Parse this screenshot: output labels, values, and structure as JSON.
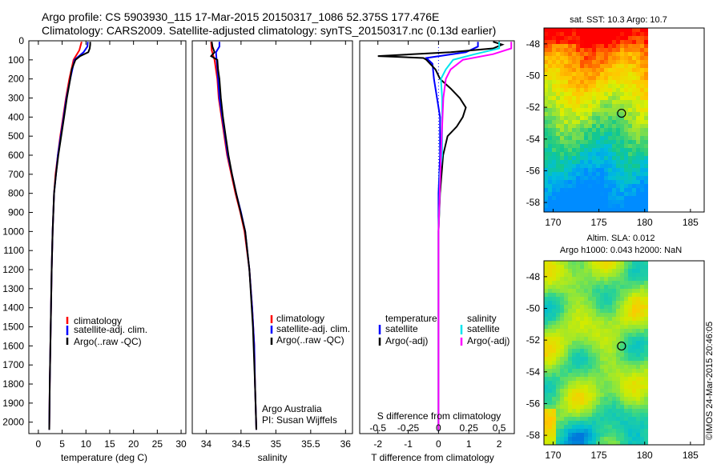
{
  "header": {
    "line1": "Argo profile: CS 5903930_115 17-Mar-2015 20150317_1086 52.375S 177.476E",
    "line2": "Climatology: CARS2009. Satellite-adjusted climatology: synTS_20150317.nc (0.13d earlier)"
  },
  "colors": {
    "climatology": "#ff0000",
    "satellite": "#0000ff",
    "argo": "#000000",
    "satellite_salinity": "#00e5ee",
    "argo_salinity_adj": "#ff00ff"
  },
  "credits": {
    "institution": "Argo Australia",
    "pi": "PI: Susan Wijffels",
    "stamp": "©IMOS 24-Mar-2015 20:46:05"
  },
  "chart_data": [
    {
      "type": "line",
      "name": "temperature-profile",
      "xlabel": "temperature (deg C)",
      "xlim": [
        -2,
        31
      ],
      "xticks": [
        0,
        5,
        10,
        15,
        20,
        25,
        30
      ],
      "ylim": [
        2060,
        0
      ],
      "yticks": [
        0,
        100,
        200,
        300,
        400,
        500,
        600,
        700,
        800,
        900,
        1000,
        1100,
        1200,
        1300,
        1400,
        1500,
        1600,
        1700,
        1800,
        1900,
        2000
      ],
      "legend": [
        "climatology",
        "satellite-adj. clim.",
        "Argo(..raw -QC)"
      ],
      "series": [
        {
          "name": "climatology",
          "color": "#ff0000",
          "depth": [
            5,
            50,
            100,
            200,
            300,
            400,
            500,
            600,
            700,
            800,
            1000,
            1200,
            1500,
            1800,
            2040
          ],
          "values": [
            9.1,
            8.6,
            7.4,
            6.5,
            5.8,
            5.2,
            4.6,
            4.1,
            3.6,
            3.3,
            3.0,
            2.8,
            2.6,
            2.4,
            2.3
          ]
        },
        {
          "name": "satellite-adj. clim.",
          "color": "#0000ff",
          "depth": [
            5,
            30,
            60,
            100,
            200,
            300,
            400,
            500,
            600,
            700,
            800,
            1000,
            1200,
            1500,
            1800,
            2040
          ],
          "values": [
            10.4,
            10.3,
            9.5,
            7.6,
            6.7,
            5.9,
            5.3,
            4.7,
            4.1,
            3.7,
            3.3,
            3.0,
            2.8,
            2.6,
            2.4,
            2.3
          ]
        },
        {
          "name": "Argo(..raw -QC)",
          "color": "#000000",
          "depth": [
            5,
            20,
            40,
            60,
            80,
            100,
            150,
            200,
            300,
            400,
            500,
            600,
            700,
            800,
            1000,
            1200,
            1500,
            1800,
            2040
          ],
          "values": [
            10.9,
            10.9,
            10.8,
            10.5,
            8.8,
            7.8,
            7.0,
            6.7,
            6.0,
            5.4,
            4.8,
            4.2,
            3.7,
            3.3,
            3.0,
            2.8,
            2.6,
            2.4,
            2.3
          ]
        }
      ]
    },
    {
      "type": "line",
      "name": "salinity-profile",
      "xlabel": "salinity",
      "xlim": [
        33.8,
        36.1
      ],
      "xticks": [
        34,
        34.5,
        35,
        35.5,
        36
      ],
      "ylim": [
        2060,
        0
      ],
      "legend": [
        "climatology",
        "satellite-adj. clim.",
        "Argo(..raw -QC)"
      ],
      "series": [
        {
          "name": "climatology",
          "color": "#ff0000",
          "depth": [
            5,
            50,
            100,
            200,
            300,
            400,
            500,
            600,
            700,
            800,
            900,
            1000,
            1200,
            1400,
            1600,
            1800,
            2040
          ],
          "values": [
            34.07,
            34.08,
            34.12,
            34.16,
            34.18,
            34.22,
            34.26,
            34.3,
            34.36,
            34.42,
            34.49,
            34.55,
            34.62,
            34.66,
            34.69,
            34.7,
            34.72
          ]
        },
        {
          "name": "satellite-adj. clim.",
          "color": "#0000ff",
          "depth": [
            5,
            30,
            60,
            100,
            200,
            300,
            400,
            500,
            600,
            700,
            800,
            900,
            1000,
            1200,
            1400,
            1600,
            1800,
            2040
          ],
          "values": [
            34.19,
            34.19,
            34.14,
            34.15,
            34.17,
            34.19,
            34.23,
            34.27,
            34.31,
            34.37,
            34.43,
            34.5,
            34.56,
            34.62,
            34.66,
            34.69,
            34.7,
            34.72
          ]
        },
        {
          "name": "Argo(..raw -QC)",
          "color": "#000000",
          "depth": [
            5,
            30,
            60,
            80,
            100,
            150,
            200,
            300,
            400,
            500,
            600,
            700,
            800,
            1000,
            1200,
            1500,
            1800,
            2040
          ],
          "values": [
            34.08,
            34.09,
            34.12,
            34.07,
            34.16,
            34.17,
            34.19,
            34.21,
            34.24,
            34.28,
            34.32,
            34.37,
            34.43,
            34.56,
            34.62,
            34.67,
            34.7,
            34.72
          ]
        }
      ]
    },
    {
      "type": "line",
      "name": "difference-profile",
      "xlabel": "T difference from climatology",
      "x2label": "S difference from climatology",
      "xlim": [
        -2.6,
        2.5
      ],
      "xticks": [
        -2,
        -1,
        0,
        1,
        2
      ],
      "x2ticks": [
        -0.5,
        -0.25,
        0,
        0.25,
        0.5
      ],
      "x2tick_labels": [
        "-0.5",
        "-0.25",
        "0",
        "0.25",
        "0.5"
      ],
      "ylim": [
        2060,
        0
      ],
      "legend_headers": [
        "temperature",
        "salinity"
      ],
      "legend": [
        "satellite",
        "Argo(-adj)",
        "satellite",
        "Argo(-adj)"
      ],
      "series": [
        {
          "name": "satellite",
          "group": "temperature",
          "color": "#0000ff",
          "depth": [
            5,
            30,
            60,
            90,
            120,
            200,
            300,
            400,
            500,
            600,
            800,
            1000,
            1500,
            2040
          ],
          "values": [
            1.3,
            1.3,
            0.9,
            -0.4,
            -0.2,
            -0.15,
            -0.05,
            0.05,
            0.05,
            0.05,
            0.0,
            0.0,
            0.0,
            0.0
          ]
        },
        {
          "name": "Argo(-adj)",
          "group": "temperature",
          "color": "#000000",
          "depth": [
            5,
            20,
            40,
            60,
            80,
            90,
            100,
            150,
            200,
            250,
            300,
            350,
            400,
            450,
            500,
            600,
            700,
            800,
            1000,
            1500,
            2040
          ],
          "values": [
            1.8,
            2.1,
            1.8,
            0.4,
            -2.0,
            -0.5,
            -0.4,
            -0.1,
            0.05,
            0.4,
            0.7,
            0.9,
            0.8,
            0.6,
            0.3,
            0.15,
            0.1,
            0.05,
            0.0,
            0.0,
            0.0
          ]
        },
        {
          "name": "satellite",
          "group": "salinity",
          "color": "#00e5ee",
          "depth": [
            5,
            40,
            70,
            100,
            150,
            200,
            300,
            500,
            600,
            700,
            800,
            1000,
            1500,
            2040
          ],
          "values": [
            0.5,
            0.5,
            0.3,
            0.12,
            0.06,
            0.02,
            0.03,
            0.03,
            0.03,
            0.01,
            0.01,
            0.0,
            0.0,
            0.0
          ]
        },
        {
          "name": "Argo(-adj)",
          "group": "salinity",
          "color": "#ff00ff",
          "depth": [
            5,
            40,
            70,
            100,
            150,
            200,
            300,
            600,
            1000,
            1500,
            2040
          ],
          "values": [
            0.6,
            0.6,
            0.45,
            0.2,
            0.1,
            0.06,
            0.04,
            0.02,
            0.0,
            0.0,
            0.0
          ]
        }
      ]
    },
    {
      "type": "heatmap",
      "name": "sst-map",
      "title": "sat. SST: 10.3 Argo: 10.7",
      "xticks": [
        170,
        175,
        180,
        185
      ],
      "yticks": [
        -48,
        -50,
        -52,
        -54,
        -56,
        -58
      ],
      "float_position": [
        177.476,
        -52.375
      ]
    },
    {
      "type": "heatmap",
      "name": "sla-map",
      "title": "Altim. SLA: 0.012",
      "subtitle": "Argo h1000: 0.043 h2000: NaN",
      "xticks": [
        170,
        175,
        180,
        185
      ],
      "yticks": [
        -48,
        -50,
        -52,
        -54,
        -56,
        -58
      ],
      "float_position": [
        177.476,
        -52.375
      ]
    }
  ]
}
